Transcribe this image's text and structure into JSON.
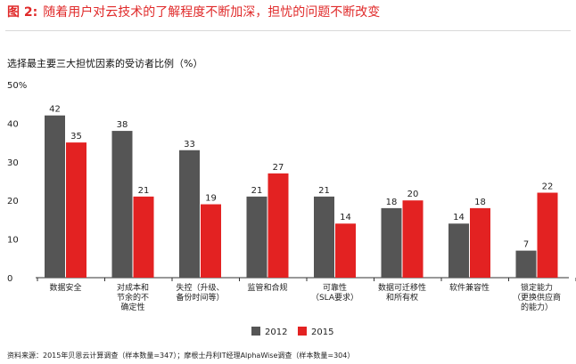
{
  "header": {
    "figure_label": "图 2:",
    "title": "随着用户对云技术的了解程度不断加深，担忧的问题不断改变"
  },
  "subtitle": "选择最主要三大担忧因素的受访者比例（%）",
  "source": "资料来源：2015年贝恩云计算调查（样本数量=347）；摩根士丹利IT经理AlphaWise调查（样本数量=304）",
  "colors": {
    "s2012": "#555555",
    "s2015": "#e32222",
    "axis": "#333333"
  },
  "chart_data": {
    "type": "bar",
    "categories": [
      [
        "数据安全"
      ],
      [
        "对成本和",
        "节余的不",
        "确定性"
      ],
      [
        "失控（升级、",
        "备份时间等）"
      ],
      [
        "监管和合规"
      ],
      [
        "可靠性",
        "（SLA要求）"
      ],
      [
        "数据可迁移性",
        "和所有权"
      ],
      [
        "软件兼容性"
      ],
      [
        "锁定能力",
        "（更换供应商",
        "的能力）"
      ]
    ],
    "series": [
      {
        "name": "2012",
        "values": [
          42,
          38,
          33,
          21,
          21,
          18,
          14,
          7
        ]
      },
      {
        "name": "2015",
        "values": [
          35,
          21,
          19,
          27,
          14,
          20,
          18,
          22
        ]
      }
    ],
    "yticks": [
      "0",
      "10",
      "20",
      "30",
      "40",
      "50%"
    ],
    "ylim": [
      0,
      50
    ],
    "grid": false,
    "legend_position": "bottom-center"
  }
}
